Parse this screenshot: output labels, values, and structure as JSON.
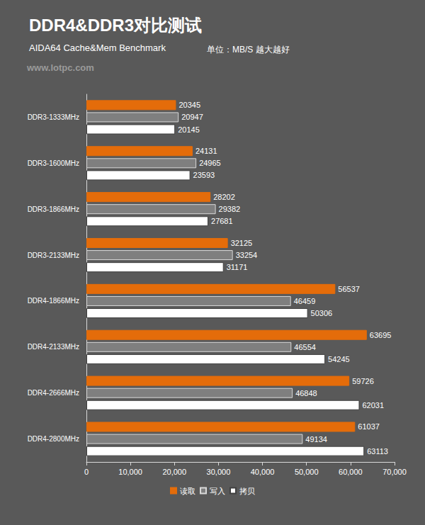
{
  "chart_data": {
    "type": "bar",
    "orientation": "horizontal",
    "title": "DDR4&DDR3对比测试",
    "subtitle": "AIDA64 Cache&Mem Benchmark",
    "annotations": [
      "单位：MB/S 越大越好",
      "www.lotpc.com"
    ],
    "categories": [
      "DDR3-1333MHz",
      "DDR3-1600MHz",
      "DDR3-1866MHz",
      "DDR3-2133MHz",
      "DDR4-1866MHz",
      "DDR4-2133MHz",
      "DDR4-2666MHz",
      "DDR4-2800MHz"
    ],
    "series": [
      {
        "name": "读取",
        "color": "#e46c0a",
        "values": [
          20345,
          24131,
          28202,
          32125,
          56537,
          63695,
          59726,
          61037
        ]
      },
      {
        "name": "写入",
        "color": "#7f7f7f",
        "values": [
          20947,
          24965,
          29382,
          33254,
          46459,
          46554,
          46848,
          49134
        ]
      },
      {
        "name": "拷贝",
        "color": "#ffffff",
        "values": [
          20145,
          23593,
          27681,
          31171,
          50306,
          54245,
          62031,
          63113
        ]
      }
    ],
    "xlim": [
      0,
      70000
    ],
    "xticks": [
      0,
      10000,
      20000,
      30000,
      40000,
      50000,
      60000,
      70000
    ],
    "grid": false,
    "legend": "bottom",
    "data_labels": true
  }
}
